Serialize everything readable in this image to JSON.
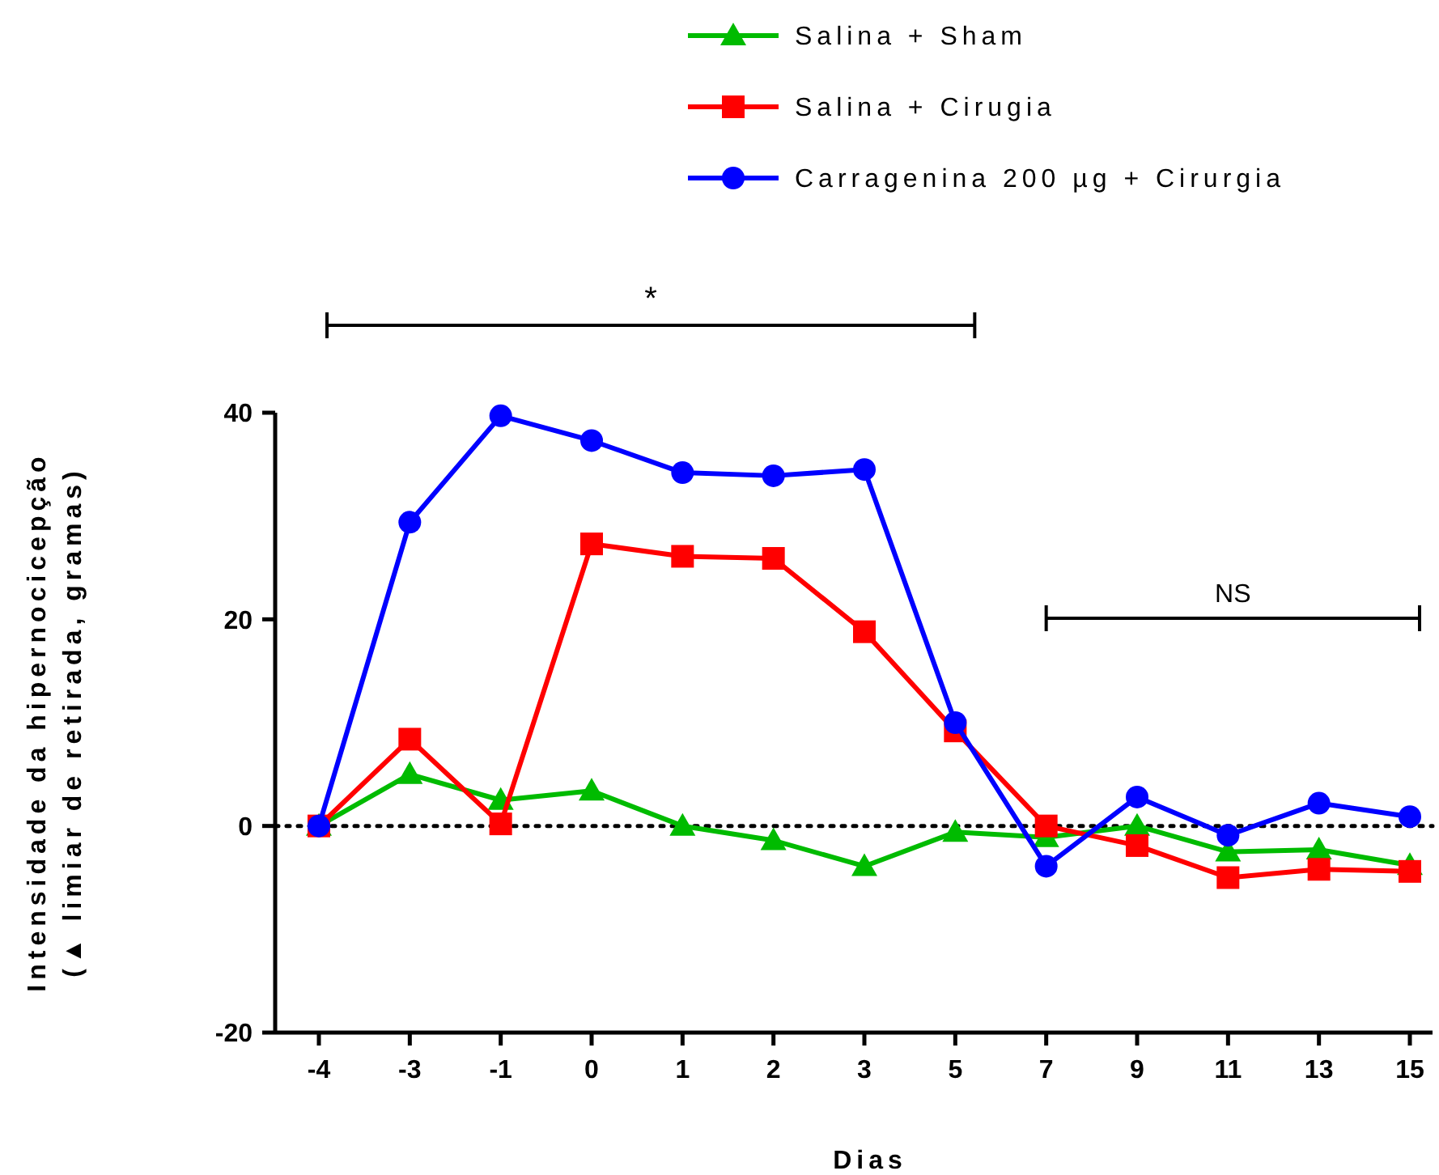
{
  "chart_data": {
    "type": "line",
    "xlabel": "Dias",
    "ylabel": "Intensidade da hipernocicepção\n(▲ limiar de retirada, gramas)",
    "categories": [
      "-4",
      "-3",
      "-1",
      "0",
      "1",
      "2",
      "3",
      "5",
      "7",
      "9",
      "11",
      "13",
      "15"
    ],
    "series": [
      {
        "name": "Salina + Sham",
        "color": "#00bb00",
        "marker": "triangle",
        "values": [
          0,
          5,
          2.5,
          3.4,
          0,
          -1.4,
          -3.9,
          -0.6,
          -1.1,
          0,
          -2.5,
          -2.3,
          -3.8
        ]
      },
      {
        "name": "Salina + Cirugia",
        "color": "#ff0000",
        "marker": "square",
        "values": [
          0,
          8.4,
          0.2,
          27.3,
          26.1,
          25.9,
          18.8,
          9.2,
          0,
          -1.9,
          -5,
          -4.2,
          -4.4
        ]
      },
      {
        "name": "Carragenina 200 µg + Cirurgia",
        "color": "#0000ff",
        "marker": "circle",
        "values": [
          0,
          29.4,
          39.7,
          37.3,
          34.2,
          33.9,
          34.5,
          10,
          -3.9,
          2.8,
          -0.9,
          2.2,
          0.9
        ]
      }
    ],
    "ylim": [
      -20,
      40
    ],
    "yticks": [
      -20,
      0,
      20,
      40
    ],
    "grid": false,
    "legend": "top right",
    "ref_lines": [
      {
        "axis": "y",
        "value": 0,
        "line_style": "dotted",
        "color": "#000000"
      }
    ],
    "annotations": [
      "*",
      "NS"
    ]
  }
}
